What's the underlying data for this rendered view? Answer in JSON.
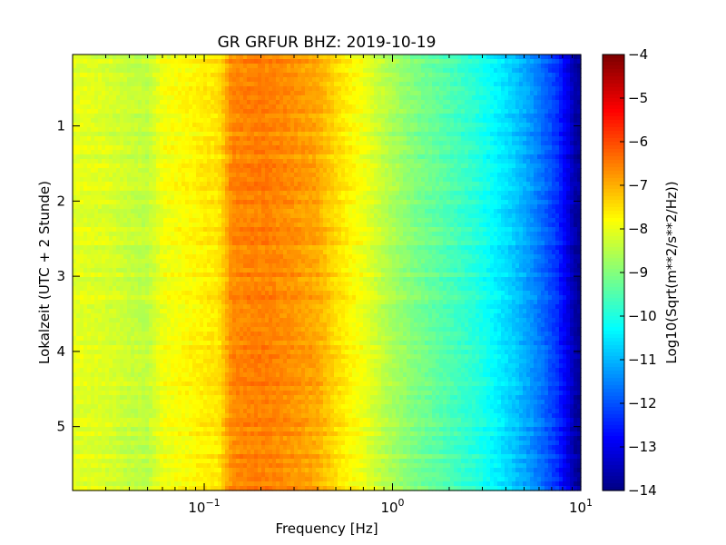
{
  "chart_data": {
    "type": "heatmap",
    "title": "GR GRFUR BHZ: 2019-10-19",
    "xlabel": "Frequency [Hz]",
    "ylabel": "Lokalzeit (UTC + 2 Stunde)",
    "x_scale": "log",
    "xlim": [
      0.02,
      10
    ],
    "x_ticks": [
      {
        "value": 0.1,
        "base": "10",
        "exp": "−1"
      },
      {
        "value": 1,
        "base": "10",
        "exp": "0"
      },
      {
        "value": 10,
        "base": "10",
        "exp": "1"
      }
    ],
    "ylim": [
      0.05,
      5.85
    ],
    "y_inverted": true,
    "y_ticks": [
      {
        "value": 1,
        "label": "1"
      },
      {
        "value": 2,
        "label": "2"
      },
      {
        "value": 3,
        "label": "3"
      },
      {
        "value": 4,
        "label": "4"
      },
      {
        "value": 5,
        "label": "5"
      }
    ],
    "colorbar": {
      "label": "Log10(Sqrt(m**2/s**2/Hz))",
      "colormap": "jet",
      "range": [
        -14,
        -4
      ],
      "ticks": [
        {
          "value": -4,
          "label": "−4"
        },
        {
          "value": -5,
          "label": "−5"
        },
        {
          "value": -6,
          "label": "−6"
        },
        {
          "value": -7,
          "label": "−7"
        },
        {
          "value": -8,
          "label": "−8"
        },
        {
          "value": -9,
          "label": "−9"
        },
        {
          "value": -10,
          "label": "−10"
        },
        {
          "value": -11,
          "label": "−11"
        },
        {
          "value": -12,
          "label": "−12"
        },
        {
          "value": -13,
          "label": "−13"
        },
        {
          "value": -14,
          "label": "−14"
        }
      ]
    },
    "spectrum_profile": {
      "frequency_hz": [
        0.02,
        0.03,
        0.04,
        0.05,
        0.06,
        0.08,
        0.1,
        0.12,
        0.14,
        0.18,
        0.22,
        0.3,
        0.4,
        0.5,
        0.6,
        0.7,
        0.85,
        1.0,
        1.3,
        1.7,
        2.2,
        2.8,
        3.5,
        4.5,
        5.5,
        6.5,
        7.5,
        8.5,
        9.3,
        10.0
      ],
      "log10_amplitude": [
        -8.0,
        -8.1,
        -8.3,
        -8.4,
        -7.9,
        -7.75,
        -7.6,
        -7.5,
        -6.6,
        -6.5,
        -6.5,
        -6.7,
        -6.9,
        -7.4,
        -7.7,
        -7.9,
        -8.3,
        -8.6,
        -9.0,
        -9.3,
        -9.6,
        -9.9,
        -10.3,
        -10.8,
        -11.3,
        -11.8,
        -12.3,
        -13.0,
        -13.6,
        -13.8
      ]
    }
  }
}
